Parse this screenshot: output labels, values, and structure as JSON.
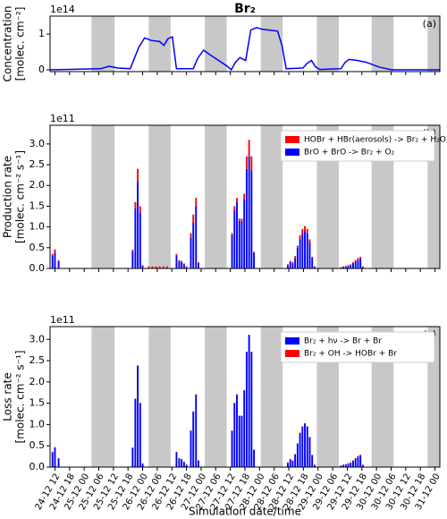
{
  "chart_data": [
    {
      "type": "line",
      "title": "Br₂",
      "panel_label": "(a)",
      "ylabel": [
        "Concentration",
        "[molec. cm⁻²]"
      ],
      "offset_label": "1e14",
      "x": [
        10,
        30.8,
        34.2,
        37.7,
        42.9,
        46.3,
        48.8,
        51.5,
        55,
        56.7,
        58.4,
        60.2,
        61.9,
        68.8,
        70.6,
        73,
        75.7,
        79.2,
        82.7,
        84.4,
        86.1,
        87.9,
        90.3,
        92.4,
        94.8,
        97.2,
        100,
        103.4,
        105.2,
        106.9,
        113.8,
        115.5,
        117.3,
        119,
        120.7,
        129.4,
        131.1,
        132.8,
        136.3,
        139.8,
        144.9,
        150.2,
        170
      ],
      "values": [
        0,
        0.03,
        0.1,
        0.05,
        0.03,
        0.61,
        0.89,
        0.82,
        0.79,
        0.68,
        0.87,
        0.92,
        0.03,
        0.03,
        0.32,
        0.55,
        0.42,
        0.26,
        0.1,
        0.0,
        0.21,
        0.34,
        0.26,
        1.11,
        1.18,
        1.13,
        1.11,
        1.08,
        0.68,
        0.03,
        0.05,
        0.18,
        0.26,
        0.08,
        0.01,
        0.03,
        0.21,
        0.29,
        0.26,
        0.21,
        0.08,
        0.0,
        0.0
      ],
      "color": "#0000ff",
      "xlim": [
        10,
        170
      ],
      "xticks": [
        12,
        18,
        24,
        30,
        36,
        42,
        48,
        54,
        60,
        66,
        72,
        78,
        84,
        90,
        96,
        102,
        108,
        114,
        120,
        126,
        132,
        138,
        144,
        150,
        156,
        162,
        168
      ],
      "ylim": [
        -0.05,
        1.5
      ],
      "yticks": [
        0,
        1
      ],
      "shaded_spans": [
        [
          27,
          36.5
        ],
        [
          50.5,
          59.5
        ],
        [
          73.5,
          82.5
        ],
        [
          96.5,
          105.5
        ],
        [
          119.5,
          128.5
        ],
        [
          142,
          151
        ],
        [
          165,
          170
        ]
      ],
      "shade_color": "#c8c8c8"
    },
    {
      "type": "bar",
      "stacked": true,
      "panel_label": "(b)",
      "ylabel": [
        "Production rate",
        "[molec. cm⁻² s⁻¹]"
      ],
      "offset_label": "1e11",
      "x": [
        11,
        12,
        13.5,
        43.9,
        45,
        46,
        47,
        48,
        50.5,
        52,
        53.5,
        55,
        56.5,
        58,
        61.9,
        63,
        64,
        65,
        66,
        67.8,
        68.8,
        69.9,
        70.9,
        84.7,
        85.7,
        86.7,
        87.7,
        88.7,
        89.7,
        90.7,
        91.7,
        92.7,
        93.7,
        107.6,
        108.6,
        109.6,
        110.6,
        111.6,
        112.6,
        113.6,
        114.6,
        115.6,
        116.6,
        117.6,
        118.6,
        129.4,
        130.4,
        131.4,
        132.4,
        133.4,
        134.4,
        135.4,
        136.4,
        137.4,
        138.4
      ],
      "series": [
        {
          "name": "BrO + BrO ->  Br₂ + O₂",
          "color": "#0000ff",
          "values": [
            0.3,
            0.38,
            0.18,
            0.4,
            1.45,
            2.1,
            1.35,
            0.06,
            0,
            0,
            0,
            0,
            0,
            0,
            0.3,
            0.17,
            0.15,
            0.1,
            0.04,
            0.75,
            1.1,
            1.5,
            0.12,
            0.8,
            1.4,
            1.6,
            1.15,
            1.15,
            1.65,
            2.4,
            2.7,
            2.35,
            0.38,
            0.08,
            0.15,
            0.12,
            0.25,
            0.5,
            0.7,
            0.85,
            0.9,
            0.85,
            0.62,
            0.25,
            0.04,
            0.02,
            0.04,
            0.05,
            0.06,
            0.08,
            0.12,
            0.17,
            0.21,
            0.24,
            0.04
          ]
        },
        {
          "name": "HOBr + HBr(aerosols) -> Br₂ + H₂O",
          "color": "#ff0000",
          "values": [
            0.05,
            0.08,
            0.02,
            0.05,
            0.15,
            0.3,
            0.15,
            0.02,
            0.05,
            0.05,
            0.05,
            0.05,
            0.05,
            0.05,
            0.05,
            0.03,
            0.03,
            0.02,
            0.01,
            0.1,
            0.2,
            0.2,
            0.03,
            0.05,
            0.1,
            0.1,
            0.05,
            0.05,
            0.15,
            0.3,
            0.4,
            0.35,
            0.02,
            0.02,
            0.03,
            0.03,
            0.05,
            0.05,
            0.1,
            0.1,
            0.12,
            0.1,
            0.08,
            0.03,
            0.01,
            0.01,
            0.01,
            0.01,
            0.02,
            0.02,
            0.03,
            0.03,
            0.04,
            0.04,
            0.01
          ]
        }
      ],
      "legend_order": [
        1,
        0
      ],
      "legend": "upper right",
      "xlim": [
        10,
        170
      ],
      "xticks": [
        12,
        18,
        24,
        30,
        36,
        42,
        48,
        54,
        60,
        66,
        72,
        78,
        84,
        90,
        96,
        102,
        108,
        114,
        120,
        126,
        132,
        138,
        144,
        150,
        156,
        162,
        168
      ],
      "ylim": [
        0,
        3.45
      ],
      "yticks": [
        {
          "value": 0,
          "label": "0.0"
        },
        0.5,
        {
          "value": 1,
          "label": "1.0"
        },
        1.5,
        {
          "value": 2,
          "label": "2.0"
        },
        2.5,
        {
          "value": 3,
          "label": "3.0"
        }
      ],
      "shaded_spans": [
        [
          27,
          36.5
        ],
        [
          50.5,
          59.5
        ],
        [
          73.5,
          82.5
        ],
        [
          96.5,
          105.5
        ],
        [
          119.5,
          128.5
        ],
        [
          142,
          151
        ],
        [
          165,
          170
        ]
      ],
      "shade_color": "#c8c8c8"
    },
    {
      "type": "bar",
      "stacked": true,
      "panel_label": "(c)",
      "ylabel": [
        "Loss rate",
        "[molec. cm⁻² s⁻¹]"
      ],
      "offset_label": "1e11",
      "xlabel": "Simulation date/time",
      "x": [
        11,
        12,
        13.5,
        43.9,
        45,
        46,
        47,
        48,
        50.5,
        52,
        53.5,
        55,
        56.5,
        58,
        61.9,
        63,
        64,
        65,
        66,
        67.8,
        68.8,
        69.9,
        70.9,
        84.7,
        85.7,
        86.7,
        87.7,
        88.7,
        89.7,
        90.7,
        91.7,
        92.7,
        93.7,
        107.6,
        108.6,
        109.6,
        110.6,
        111.6,
        112.6,
        113.6,
        114.6,
        115.6,
        116.6,
        117.6,
        118.6,
        129.4,
        130.4,
        131.4,
        132.4,
        133.4,
        134.4,
        135.4,
        136.4,
        137.4,
        138.4
      ],
      "series": [
        {
          "name": "Br₂ + hν -> Br + Br",
          "color": "#0000ff",
          "values": [
            0.35,
            0.46,
            0.2,
            0.45,
            1.6,
            2.38,
            1.5,
            0.08,
            0,
            0,
            0,
            0,
            0,
            0,
            0.35,
            0.2,
            0.18,
            0.12,
            0.05,
            0.85,
            1.3,
            1.7,
            0.15,
            0.85,
            1.5,
            1.7,
            1.2,
            1.2,
            1.8,
            2.7,
            3.1,
            2.7,
            0.4,
            0.1,
            0.18,
            0.15,
            0.3,
            0.55,
            0.8,
            0.95,
            1.02,
            0.95,
            0.7,
            0.28,
            0.05,
            0.03,
            0.05,
            0.06,
            0.08,
            0.1,
            0.15,
            0.2,
            0.25,
            0.28,
            0.05
          ]
        },
        {
          "name": "Br₂ + OH -> HOBr + Br",
          "color": "#ff0000",
          "values": [
            0.01,
            0.01,
            0.01,
            0.01,
            0.01,
            0.01,
            0.01,
            0.01,
            0,
            0,
            0,
            0,
            0,
            0,
            0.01,
            0.01,
            0.01,
            0.01,
            0.01,
            0.01,
            0.01,
            0.01,
            0.01,
            0.01,
            0.01,
            0.01,
            0.01,
            0.01,
            0.01,
            0.01,
            0.01,
            0.01,
            0.01,
            0.01,
            0.01,
            0.01,
            0.01,
            0.01,
            0.01,
            0.01,
            0.01,
            0.01,
            0.01,
            0.01,
            0.01,
            0.01,
            0.01,
            0.01,
            0.01,
            0.01,
            0.01,
            0.01,
            0.01,
            0.01,
            0.01
          ]
        }
      ],
      "legend_order": [
        0,
        1
      ],
      "legend": "upper right",
      "xlim": [
        10,
        170
      ],
      "xticks": [
        {
          "value": 12,
          "label": "24-12 12"
        },
        {
          "value": 18,
          "label": "24-12 18"
        },
        {
          "value": 24,
          "label": "25-12 00"
        },
        {
          "value": 30,
          "label": "25-12 06"
        },
        {
          "value": 36,
          "label": "25-12 12"
        },
        {
          "value": 42,
          "label": "25-12 18"
        },
        {
          "value": 48,
          "label": "26-12 00"
        },
        {
          "value": 54,
          "label": "26-12 06"
        },
        {
          "value": 60,
          "label": "26-12 12"
        },
        {
          "value": 66,
          "label": "26-12 18"
        },
        {
          "value": 72,
          "label": "27-12 00"
        },
        {
          "value": 78,
          "label": "27-12 06"
        },
        {
          "value": 84,
          "label": "27-12 12"
        },
        {
          "value": 90,
          "label": "27-12 18"
        },
        {
          "value": 96,
          "label": "28-12 00"
        },
        {
          "value": 102,
          "label": "28-12 06"
        },
        {
          "value": 108,
          "label": "28-12 12"
        },
        {
          "value": 114,
          "label": "28-12 18"
        },
        {
          "value": 120,
          "label": "29-12 00"
        },
        {
          "value": 126,
          "label": "29-12 06"
        },
        {
          "value": 132,
          "label": "29-12 12"
        },
        {
          "value": 138,
          "label": "29-12 18"
        },
        {
          "value": 144,
          "label": "30-12 00"
        },
        {
          "value": 150,
          "label": "30-12 06"
        },
        {
          "value": 156,
          "label": "30-12 12"
        },
        {
          "value": 162,
          "label": "30-12 18"
        },
        {
          "value": 168,
          "label": "31-12 00"
        }
      ],
      "ylim": [
        0,
        3.3
      ],
      "yticks": [
        {
          "value": 0,
          "label": "0.0"
        },
        0.5,
        {
          "value": 1,
          "label": "1.0"
        },
        1.5,
        {
          "value": 2,
          "label": "2.0"
        },
        2.5,
        {
          "value": 3,
          "label": "3.0"
        }
      ],
      "shaded_spans": [
        [
          27,
          36.5
        ],
        [
          50.5,
          59.5
        ],
        [
          73.5,
          82.5
        ],
        [
          96.5,
          105.5
        ],
        [
          119.5,
          128.5
        ],
        [
          142,
          151
        ],
        [
          165,
          170
        ]
      ],
      "shade_color": "#c8c8c8"
    }
  ]
}
